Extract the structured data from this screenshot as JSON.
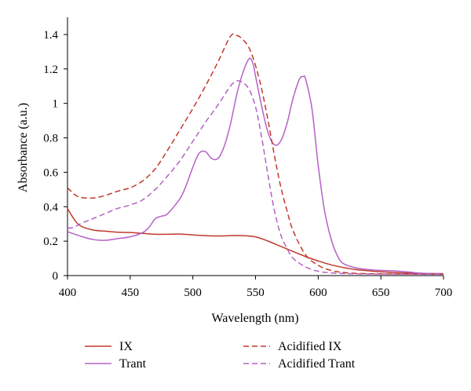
{
  "chart_data": {
    "type": "line",
    "title": "",
    "xlabel": "Wavelength (nm)",
    "ylabel": "Absorbance (a.u.)",
    "xlim": [
      400,
      700
    ],
    "ylim": [
      0,
      1.5
    ],
    "x_ticks": [
      400,
      450,
      500,
      550,
      600,
      650,
      700
    ],
    "x_tick_labels": [
      "400",
      "450",
      "500",
      "550",
      "600",
      "650",
      "700"
    ],
    "y_ticks": [
      0,
      0.2,
      0.4,
      0.6,
      0.8,
      1.0,
      1.2,
      1.4
    ],
    "y_tick_labels": [
      "0",
      "0.2",
      "0.4",
      "0.6",
      "0.8",
      "1",
      "1.2",
      "1.4"
    ],
    "grid": false,
    "legend_position": "bottom",
    "series": [
      {
        "name": "IX",
        "color": "#c0392b",
        "dash": "solid",
        "points": [
          [
            400,
            0.39
          ],
          [
            405,
            0.33
          ],
          [
            410,
            0.29
          ],
          [
            420,
            0.265
          ],
          [
            430,
            0.258
          ],
          [
            440,
            0.252
          ],
          [
            450,
            0.25
          ],
          [
            460,
            0.245
          ],
          [
            470,
            0.24
          ],
          [
            480,
            0.24
          ],
          [
            490,
            0.241
          ],
          [
            500,
            0.236
          ],
          [
            510,
            0.232
          ],
          [
            520,
            0.23
          ],
          [
            530,
            0.232
          ],
          [
            540,
            0.232
          ],
          [
            550,
            0.225
          ],
          [
            560,
            0.2
          ],
          [
            570,
            0.17
          ],
          [
            580,
            0.14
          ],
          [
            590,
            0.11
          ],
          [
            600,
            0.085
          ],
          [
            610,
            0.063
          ],
          [
            620,
            0.047
          ],
          [
            630,
            0.035
          ],
          [
            640,
            0.028
          ],
          [
            650,
            0.022
          ],
          [
            660,
            0.018
          ],
          [
            670,
            0.015
          ],
          [
            680,
            0.013
          ],
          [
            690,
            0.012
          ],
          [
            700,
            0.011
          ]
        ]
      },
      {
        "name": "Trant",
        "color": "#b561c6",
        "dash": "solid",
        "points": [
          [
            400,
            0.255
          ],
          [
            410,
            0.23
          ],
          [
            420,
            0.21
          ],
          [
            430,
            0.205
          ],
          [
            440,
            0.215
          ],
          [
            450,
            0.225
          ],
          [
            460,
            0.25
          ],
          [
            465,
            0.28
          ],
          [
            470,
            0.33
          ],
          [
            475,
            0.345
          ],
          [
            480,
            0.36
          ],
          [
            490,
            0.45
          ],
          [
            495,
            0.53
          ],
          [
            500,
            0.63
          ],
          [
            505,
            0.71
          ],
          [
            510,
            0.72
          ],
          [
            515,
            0.68
          ],
          [
            520,
            0.68
          ],
          [
            525,
            0.75
          ],
          [
            530,
            0.88
          ],
          [
            535,
            1.05
          ],
          [
            540,
            1.18
          ],
          [
            545,
            1.26
          ],
          [
            548,
            1.23
          ],
          [
            550,
            1.16
          ],
          [
            555,
            0.98
          ],
          [
            560,
            0.83
          ],
          [
            565,
            0.76
          ],
          [
            570,
            0.78
          ],
          [
            575,
            0.88
          ],
          [
            580,
            1.03
          ],
          [
            585,
            1.14
          ],
          [
            588,
            1.155
          ],
          [
            590,
            1.14
          ],
          [
            595,
            0.97
          ],
          [
            600,
            0.64
          ],
          [
            605,
            0.38
          ],
          [
            610,
            0.22
          ],
          [
            615,
            0.12
          ],
          [
            620,
            0.07
          ],
          [
            630,
            0.045
          ],
          [
            640,
            0.035
          ],
          [
            650,
            0.03
          ],
          [
            660,
            0.028
          ],
          [
            670,
            0.022
          ],
          [
            680,
            0.015
          ],
          [
            690,
            0.012
          ],
          [
            700,
            0.011
          ]
        ]
      },
      {
        "name": "Acidified IX",
        "color": "#c0392b",
        "dash": "dashed",
        "points": [
          [
            400,
            0.51
          ],
          [
            405,
            0.475
          ],
          [
            410,
            0.455
          ],
          [
            420,
            0.45
          ],
          [
            430,
            0.465
          ],
          [
            440,
            0.49
          ],
          [
            450,
            0.51
          ],
          [
            460,
            0.55
          ],
          [
            470,
            0.62
          ],
          [
            480,
            0.73
          ],
          [
            490,
            0.85
          ],
          [
            500,
            0.97
          ],
          [
            510,
            1.1
          ],
          [
            520,
            1.24
          ],
          [
            530,
            1.39
          ],
          [
            535,
            1.395
          ],
          [
            540,
            1.37
          ],
          [
            545,
            1.32
          ],
          [
            550,
            1.22
          ],
          [
            555,
            1.08
          ],
          [
            560,
            0.9
          ],
          [
            565,
            0.7
          ],
          [
            570,
            0.52
          ],
          [
            575,
            0.38
          ],
          [
            580,
            0.26
          ],
          [
            590,
            0.12
          ],
          [
            600,
            0.06
          ],
          [
            610,
            0.03
          ],
          [
            620,
            0.018
          ],
          [
            630,
            0.013
          ],
          [
            640,
            0.011
          ],
          [
            650,
            0.01
          ],
          [
            670,
            0.009
          ],
          [
            700,
            0.008
          ]
        ]
      },
      {
        "name": "Acidified Trant",
        "color": "#b561c6",
        "dash": "dashed",
        "points": [
          [
            400,
            0.275
          ],
          [
            405,
            0.28
          ],
          [
            410,
            0.3
          ],
          [
            420,
            0.33
          ],
          [
            430,
            0.36
          ],
          [
            440,
            0.39
          ],
          [
            450,
            0.41
          ],
          [
            460,
            0.44
          ],
          [
            470,
            0.5
          ],
          [
            480,
            0.58
          ],
          [
            490,
            0.67
          ],
          [
            500,
            0.78
          ],
          [
            510,
            0.89
          ],
          [
            520,
            0.99
          ],
          [
            530,
            1.1
          ],
          [
            535,
            1.13
          ],
          [
            540,
            1.12
          ],
          [
            545,
            1.08
          ],
          [
            550,
            0.98
          ],
          [
            555,
            0.8
          ],
          [
            560,
            0.58
          ],
          [
            565,
            0.38
          ],
          [
            570,
            0.24
          ],
          [
            575,
            0.16
          ],
          [
            580,
            0.1
          ],
          [
            590,
            0.05
          ],
          [
            600,
            0.025
          ],
          [
            610,
            0.016
          ],
          [
            620,
            0.012
          ],
          [
            630,
            0.01
          ],
          [
            650,
            0.009
          ],
          [
            700,
            0.008
          ]
        ]
      }
    ]
  }
}
